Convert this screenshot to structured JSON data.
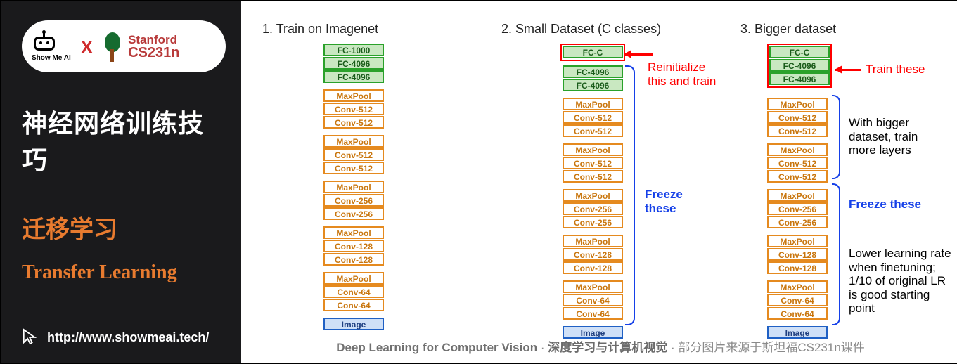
{
  "left": {
    "showme_label": "Show Me AI",
    "x": "X",
    "stanford_top": "Stanford",
    "stanford_bot": "CS231n",
    "title_cn": "神经网络训练技巧",
    "sub_cn": "迁移学习",
    "sub_en": "Transfer Learning",
    "url": "http://www.showmeai.tech/"
  },
  "columns": [
    {
      "title": "1. Train on Imagenet",
      "red_wrap_count": 0,
      "top_fc": [
        "FC-1000",
        "FC-4096",
        "FC-4096"
      ]
    },
    {
      "title": "2. Small Dataset (C classes)",
      "red_wrap_count": 1,
      "top_fc": [
        "FC-C",
        "FC-4096",
        "FC-4096"
      ]
    },
    {
      "title": "3. Bigger dataset",
      "red_wrap_count": 3,
      "top_fc": [
        "FC-C",
        "FC-4096",
        "FC-4096"
      ]
    }
  ],
  "body_groups": [
    [
      "MaxPool",
      "Conv-512",
      "Conv-512"
    ],
    [
      "MaxPool",
      "Conv-512",
      "Conv-512"
    ],
    [
      "MaxPool",
      "Conv-256",
      "Conv-256"
    ],
    [
      "MaxPool",
      "Conv-128",
      "Conv-128"
    ],
    [
      "MaxPool",
      "Conv-64",
      "Conv-64"
    ]
  ],
  "image_label": "Image",
  "ann": {
    "c2_red": "Reinitialize\nthis and train",
    "c2_blue": "Freeze these",
    "c3_red": "Train these",
    "c3_black1": "With bigger\ndataset, train\nmore layers",
    "c3_blue": "Freeze these",
    "c3_black2": "Lower learning rate\nwhen finetuning;\n1/10 of original LR\nis good starting\npoint"
  },
  "footer": {
    "a": "Deep Learning for Computer Vision",
    "dot": " · ",
    "b": "深度学习与计算机视觉",
    "c": "部分图片来源于斯坦福CS231n课件"
  },
  "watermark": {
    "p1": "Show",
    "p2": "MeAI"
  },
  "colors": {
    "left_bg": "#1a1a1c",
    "accent": "#e87b2f",
    "fc_border": "#2aa12a",
    "fc_fill": "#c9e8c1",
    "conv_border": "#e58a1f",
    "img_border": "#1f60c4",
    "img_fill": "#cfe0f7",
    "red": "#ff0000",
    "blue": "#1540e8",
    "footer": "#8a8a8a"
  }
}
